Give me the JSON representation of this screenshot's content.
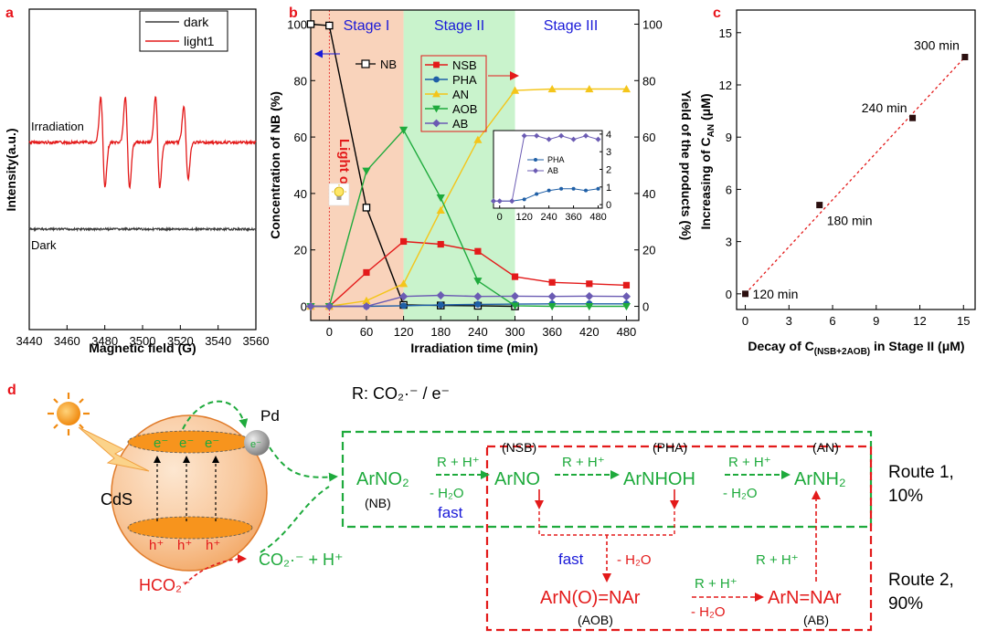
{
  "panel_labels": {
    "a": "a",
    "b": "b",
    "c": "c",
    "d": "d"
  },
  "colors": {
    "panel_label": "#e8141b",
    "stage_title": "#1a1ad8",
    "green": "#1eaa3c",
    "red": "#e31a1a",
    "blue": "#1a1ad8",
    "stage1_bg": "#f9d3bb",
    "stage2_bg": "#c9f3cc",
    "nb": "#000000",
    "nsb": "#e31a1a",
    "pha": "#1f5fa6",
    "an": "#f4c51a",
    "aob": "#1eaa3c",
    "ab": "#6b5bb3"
  },
  "chart_data": [
    {
      "id": "a",
      "type": "line",
      "xlabel": "Magnetic field (G)",
      "ylabel": "Intensity(a.u.)",
      "xlim": [
        3440,
        3560
      ],
      "xticks": [
        "3440",
        "3460",
        "3480",
        "3500",
        "3520",
        "3540",
        "3560"
      ],
      "legend": {
        "placement": "top-right",
        "entries": [
          {
            "name": "dark",
            "color": "#3a3a3a"
          },
          {
            "name": "light1",
            "color": "#e31a1a"
          }
        ]
      },
      "annotations": [
        "Irradiation",
        "Dark"
      ],
      "series": [
        {
          "name": "dark",
          "color": "#3a3a3a",
          "baseline": 0.0
        },
        {
          "name": "light1",
          "color": "#e31a1a",
          "baseline": 1.0,
          "lines": [
            {
              "center": 3479,
              "amplitude": 0.55
            },
            {
              "center": 3492,
              "amplitude": 0.55
            },
            {
              "center": 3508,
              "amplitude": 0.55
            },
            {
              "center": 3523,
              "amplitude": 0.45
            }
          ]
        }
      ]
    },
    {
      "id": "b",
      "type": "line",
      "xlabel": "Irradiation time (min)",
      "ylabel": "Concentration of NB (%)",
      "ylabel_right": "Yield of the products (%)",
      "xlim": [
        -30,
        500
      ],
      "ylim": [
        -5,
        105
      ],
      "ylim_right": [
        -5,
        105
      ],
      "xticks": [
        0,
        60,
        120,
        180,
        240,
        300,
        360,
        420,
        480
      ],
      "yticks": [
        0,
        20,
        40,
        60,
        80,
        100
      ],
      "yticks_right": [
        0,
        20,
        40,
        60,
        80,
        100
      ],
      "stages": [
        {
          "label": "Stage I",
          "from": -30,
          "to": 120
        },
        {
          "label": "Stage II",
          "from": 120,
          "to": 300
        },
        {
          "label": "Stage III",
          "from": 300,
          "to": 500
        }
      ],
      "light_label": "Light on",
      "series": [
        {
          "name": "NB",
          "marker": "square-open",
          "color": "#000000",
          "x": [
            -30,
            0,
            60,
            120,
            180,
            240,
            300
          ],
          "y": [
            100,
            99.5,
            35,
            0.5,
            0.3,
            0.2,
            0
          ]
        },
        {
          "name": "NSB",
          "marker": "square",
          "color": "#e31a1a",
          "x": [
            -30,
            0,
            60,
            120,
            180,
            240,
            300,
            360,
            420,
            480
          ],
          "y": [
            0,
            0,
            12,
            23,
            22,
            19.5,
            10.5,
            8.5,
            8,
            7.5
          ]
        },
        {
          "name": "PHA",
          "marker": "circle",
          "color": "#1f5fa6",
          "x": [
            -30,
            0,
            60,
            120,
            180,
            240,
            300,
            360,
            420,
            480
          ],
          "y": [
            0,
            0,
            0,
            0.2,
            0.5,
            0.7,
            0.8,
            0.9,
            0.9,
            0.9
          ]
        },
        {
          "name": "AN",
          "marker": "triangle-up",
          "color": "#f4c51a",
          "x": [
            -30,
            0,
            60,
            120,
            180,
            240,
            300,
            360,
            420,
            480
          ],
          "y": [
            0,
            0,
            2,
            8,
            34,
            59,
            76.5,
            77,
            77,
            77
          ]
        },
        {
          "name": "AOB",
          "marker": "triangle-down",
          "color": "#1eaa3c",
          "x": [
            -30,
            0,
            60,
            120,
            180,
            240,
            300,
            360,
            420,
            480
          ],
          "y": [
            0,
            0,
            48,
            62.5,
            38.5,
            9,
            0.2,
            0,
            0,
            0
          ]
        },
        {
          "name": "AB",
          "marker": "diamond",
          "color": "#6b5bb3",
          "x": [
            -30,
            0,
            60,
            120,
            180,
            240,
            300,
            360,
            420,
            480
          ],
          "y": [
            0,
            0,
            0,
            3.5,
            3.9,
            3.5,
            3.6,
            3.5,
            3.6,
            3.5
          ]
        }
      ],
      "inset": {
        "type": "line",
        "xticks": [
          0,
          120,
          240,
          360,
          480
        ],
        "yticks": [
          0,
          1,
          2,
          3,
          4
        ],
        "xlim": [
          -30,
          500
        ],
        "ylim": [
          -0.2,
          4.2
        ],
        "series": [
          {
            "name": "PHA",
            "color": "#1f5fa6",
            "x": [
              -30,
              0,
              60,
              120,
              180,
              240,
              300,
              360,
              420,
              480
            ],
            "y": [
              0.2,
              0.2,
              0.2,
              0.3,
              0.6,
              0.8,
              0.9,
              0.9,
              0.8,
              0.9
            ]
          },
          {
            "name": "AB",
            "color": "#6b5bb3",
            "x": [
              -30,
              0,
              60,
              120,
              180,
              240,
              300,
              360,
              420,
              480
            ],
            "y": [
              0.2,
              0.2,
              0.2,
              3.9,
              3.9,
              3.7,
              3.9,
              3.7,
              3.9,
              3.7
            ]
          }
        ]
      }
    },
    {
      "id": "c",
      "type": "scatter",
      "xlabel": "Decay of C(NSB+2AOB) in Stage II (μM)",
      "ylabel": "Increasing of CAN (μM)",
      "xlim": [
        -0.6,
        15.8
      ],
      "ylim": [
        -0.9,
        16.3
      ],
      "xticks": [
        0,
        3,
        6,
        9,
        12,
        15
      ],
      "yticks": [
        0,
        3,
        6,
        9,
        12,
        15
      ],
      "points": [
        {
          "x": 0,
          "y": 0,
          "label": "120 min"
        },
        {
          "x": 5.1,
          "y": 5.1,
          "label": "180 min"
        },
        {
          "x": 11.5,
          "y": 10.1,
          "label": "240 min"
        },
        {
          "x": 15.1,
          "y": 13.6,
          "label": "300 min"
        }
      ],
      "fit_line": {
        "style": "dashed",
        "color": "#e31a1a"
      }
    }
  ],
  "scheme": {
    "reductant": "R:  CO₂·⁻ / e⁻",
    "pd": "Pd",
    "cds": "CdS",
    "electron": "e⁻",
    "hole": "h⁺",
    "formate": "HCO₂⁻",
    "radical": "CO₂·⁻ + H⁺",
    "species": {
      "nb": "ArNO₂",
      "nb_tag": "(NB)",
      "nsb": "ArNO",
      "nsb_tag": "(NSB)",
      "pha": "ArNHOH",
      "pha_tag": "(PHA)",
      "an": "ArNH₂",
      "an_tag": "(AN)",
      "aob": "ArN(O)=NAr",
      "aob_tag": "(AOB)",
      "ab": "ArN=NAr",
      "ab_tag": "(AB)"
    },
    "arrow_labels": {
      "rh": "R + H⁺",
      "minus_water": "- H₂O",
      "fast": "fast"
    },
    "routes": {
      "route1": [
        "Route 1,",
        "10%"
      ],
      "route2": [
        "Route 2,",
        "90%"
      ]
    }
  }
}
